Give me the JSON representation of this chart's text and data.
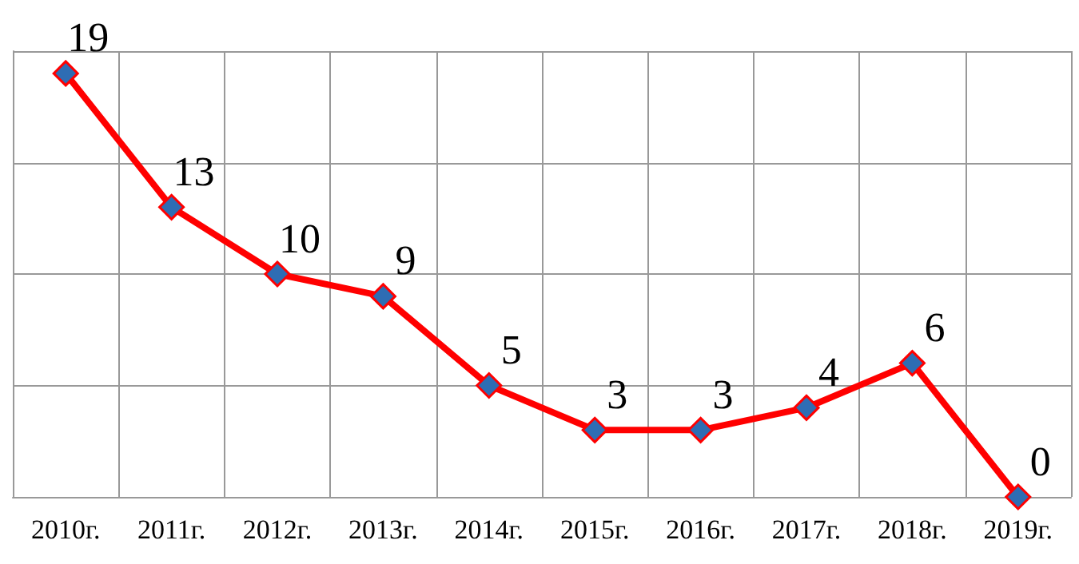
{
  "chart_data": {
    "type": "line",
    "categories": [
      "2010г.",
      "2011г.",
      "2012г.",
      "2013г.",
      "2014г.",
      "2015г.",
      "2016г.",
      "2017г.",
      "2018г.",
      "2019г."
    ],
    "series": [
      {
        "color": "#ff0000",
        "values": [
          19,
          13,
          10,
          9,
          5,
          3,
          3,
          4,
          6,
          0
        ]
      }
    ],
    "ylim": [
      0,
      20
    ],
    "yticks": [
      0,
      5,
      10,
      15,
      20
    ],
    "tick_labels": "x",
    "grid": true,
    "marker": "diamond",
    "line_style": "solid",
    "data_labels": true
  }
}
